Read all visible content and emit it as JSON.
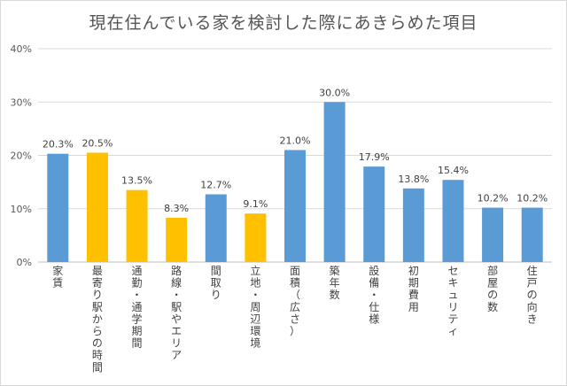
{
  "chart_data": {
    "type": "bar",
    "title": "現在住んでいる家を検討した際にあきらめた項目",
    "xlabel": "",
    "ylabel": "",
    "ylim": [
      0,
      40
    ],
    "yticks": [
      "0%",
      "10%",
      "20%",
      "30%",
      "40%"
    ],
    "grid": true,
    "legend": "none",
    "unit": "%",
    "colors": {
      "blue": "#5b9bd5",
      "highlight": "#ffc000"
    },
    "categories": [
      "家賃",
      "最寄り駅からの時間",
      "通勤・通学期間",
      "路線・駅やエリア",
      "間取り",
      "立地・周辺環境",
      "面積（広さ）",
      "築年数",
      "設備・仕様",
      "初期費用",
      "セキュリティ",
      "部屋の数",
      "住戸の向き"
    ],
    "values": [
      20.3,
      20.5,
      13.5,
      8.3,
      12.7,
      9.1,
      21.0,
      30.0,
      17.9,
      13.8,
      15.4,
      10.2,
      10.2
    ],
    "value_labels": [
      "20.3%",
      "20.5%",
      "13.5%",
      "8.3%",
      "12.7%",
      "9.1%",
      "21.0%",
      "30.0%",
      "17.9%",
      "13.8%",
      "15.4%",
      "10.2%",
      "10.2%"
    ],
    "bar_colors": [
      "blue",
      "highlight",
      "highlight",
      "highlight",
      "blue",
      "highlight",
      "blue",
      "blue",
      "blue",
      "blue",
      "blue",
      "blue",
      "blue"
    ]
  }
}
